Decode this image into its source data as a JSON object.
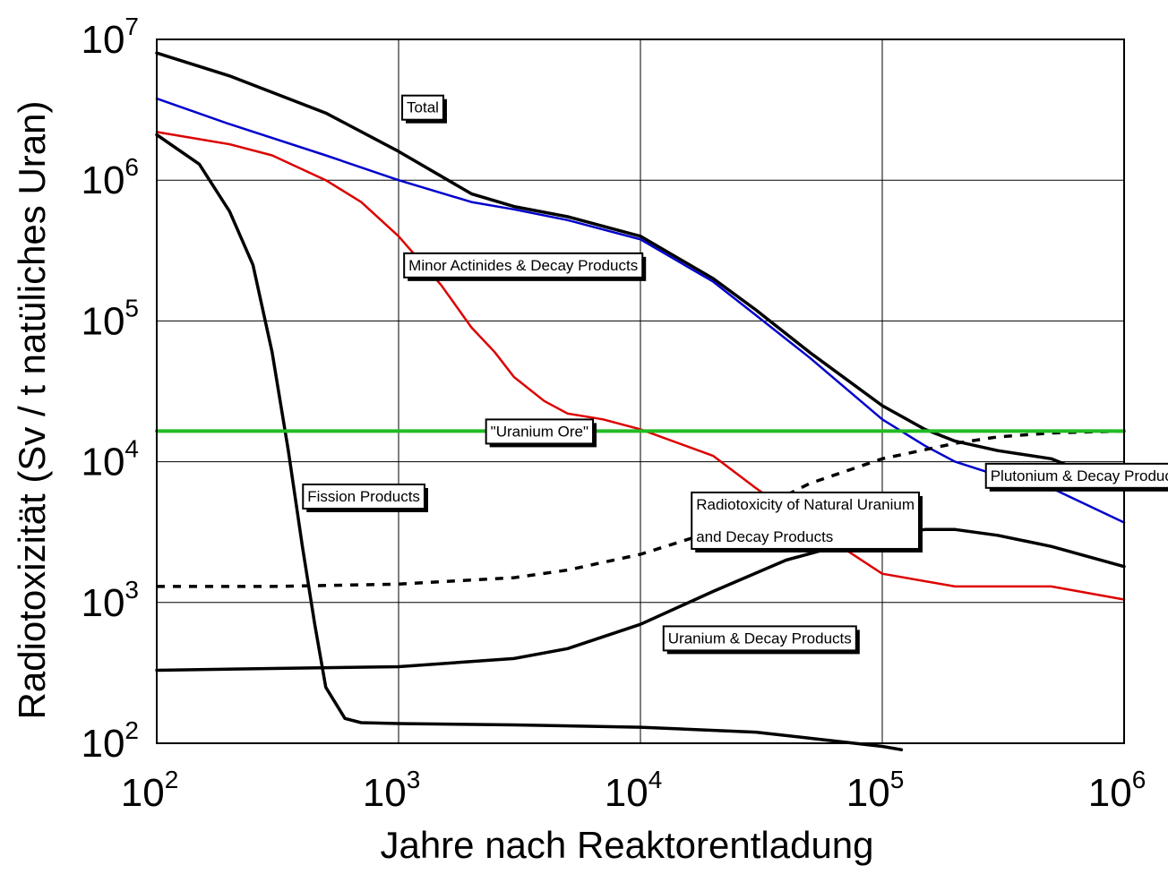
{
  "chart_data": {
    "type": "line",
    "xlabel": "Jahre nach Reaktorentladung",
    "ylabel": "Radiotoxizität (Sv / t natüliches Uran)",
    "xscale": "log",
    "yscale": "log",
    "xlim": [
      100,
      1000000
    ],
    "ylim": [
      100,
      10000000
    ],
    "grid": true,
    "x_ticks": [
      {
        "base": "10",
        "exp": "2"
      },
      {
        "base": "10",
        "exp": "3"
      },
      {
        "base": "10",
        "exp": "4"
      },
      {
        "base": "10",
        "exp": "5"
      },
      {
        "base": "10",
        "exp": "6"
      }
    ],
    "y_ticks": [
      {
        "base": "10",
        "exp": "2"
      },
      {
        "base": "10",
        "exp": "3"
      },
      {
        "base": "10",
        "exp": "4"
      },
      {
        "base": "10",
        "exp": "5"
      },
      {
        "base": "10",
        "exp": "6"
      },
      {
        "base": "10",
        "exp": "7"
      }
    ],
    "series": [
      {
        "name": "Total",
        "color": "#000000",
        "dash": false,
        "width": 3.5,
        "x": [
          100,
          200,
          500,
          1000,
          2000,
          3000,
          5000,
          10000,
          20000,
          30000,
          50000,
          100000,
          150000,
          200000,
          300000,
          500000,
          1000000
        ],
        "y": [
          8000000,
          5500000,
          3000000,
          1600000,
          800000,
          650000,
          550000,
          400000,
          200000,
          120000,
          60000,
          25000,
          17000,
          14000,
          12000,
          10500,
          6500
        ]
      },
      {
        "name": "Plutonium & Decay Products",
        "color": "#0000cc",
        "dash": false,
        "width": 2.5,
        "x": [
          100,
          200,
          500,
          1000,
          2000,
          3000,
          5000,
          10000,
          20000,
          30000,
          50000,
          100000,
          150000,
          200000,
          300000,
          500000,
          1000000
        ],
        "y": [
          3800000,
          2500000,
          1500000,
          1000000,
          700000,
          620000,
          520000,
          380000,
          190000,
          110000,
          55000,
          20000,
          13000,
          10000,
          8000,
          6500,
          3700
        ]
      },
      {
        "name": "Minor Actinides & Decay Products",
        "color": "#dd0000",
        "dash": false,
        "width": 2.5,
        "x": [
          100,
          200,
          300,
          500,
          700,
          1000,
          1500,
          2000,
          2500,
          3000,
          4000,
          5000,
          7000,
          10000,
          20000,
          30000,
          50000,
          100000,
          200000,
          500000,
          1000000
        ],
        "y": [
          2200000,
          1800000,
          1500000,
          1000000,
          700000,
          400000,
          180000,
          90000,
          60000,
          40000,
          27000,
          22000,
          20000,
          17000,
          11000,
          6500,
          3500,
          1600,
          1300,
          1300,
          1050
        ]
      },
      {
        "name": "Fission Products",
        "color": "#000000",
        "dash": false,
        "width": 3.5,
        "x": [
          100,
          150,
          200,
          250,
          300,
          350,
          400,
          450,
          500,
          600,
          700,
          1000,
          3000,
          10000,
          30000,
          60000,
          100000,
          120000
        ],
        "y": [
          2100000,
          1300000,
          600000,
          250000,
          60000,
          12000,
          2500,
          700,
          250,
          150,
          140,
          138,
          135,
          130,
          120,
          105,
          95,
          90
        ]
      },
      {
        "name": "Uranium & Decay Products",
        "color": "#000000",
        "dash": false,
        "width": 3.5,
        "x": [
          100,
          300,
          1000,
          3000,
          5000,
          10000,
          20000,
          40000,
          70000,
          100000,
          150000,
          200000,
          300000,
          500000,
          1000000
        ],
        "y": [
          330,
          340,
          350,
          400,
          470,
          700,
          1200,
          2000,
          2600,
          3000,
          3300,
          3300,
          3000,
          2500,
          1800
        ]
      },
      {
        "name": "Radiotoxicity of Natural Uranium and Decay Products",
        "color": "#000000",
        "dash": true,
        "width": 3.5,
        "x": [
          100,
          300,
          1000,
          3000,
          5000,
          10000,
          20000,
          30000,
          50000,
          100000,
          200000,
          300000,
          500000,
          1000000
        ],
        "y": [
          1300,
          1300,
          1350,
          1500,
          1700,
          2200,
          3200,
          4500,
          7000,
          10500,
          13500,
          15000,
          16000,
          16500
        ]
      },
      {
        "name": "\"Uranium Ore\"",
        "color": "#22bb22",
        "dash": false,
        "width": 4,
        "x": [
          100,
          1000000
        ],
        "y": [
          16500,
          16500
        ]
      }
    ],
    "annotations": [
      {
        "text": "Total",
        "x": 1080,
        "y": 3300000
      },
      {
        "text": "Minor Actinides & Decay Products",
        "x": 1100,
        "y": 250000
      },
      {
        "text": "\"Uranium Ore\"",
        "x": 2400,
        "y": 16500
      },
      {
        "text": "Fission Products",
        "x": 420,
        "y": 5700
      },
      {
        "text": "Radiotoxicity of Natural Uranium",
        "x": 17000,
        "y": 5000
      },
      {
        "text": "and Decay Products",
        "x": 17000,
        "y": 2950
      },
      {
        "text": "Plutonium & Decay Products",
        "x": 280000,
        "y": 8000
      },
      {
        "text": "Uranium & Decay Products",
        "x": 13000,
        "y": 560
      }
    ]
  }
}
